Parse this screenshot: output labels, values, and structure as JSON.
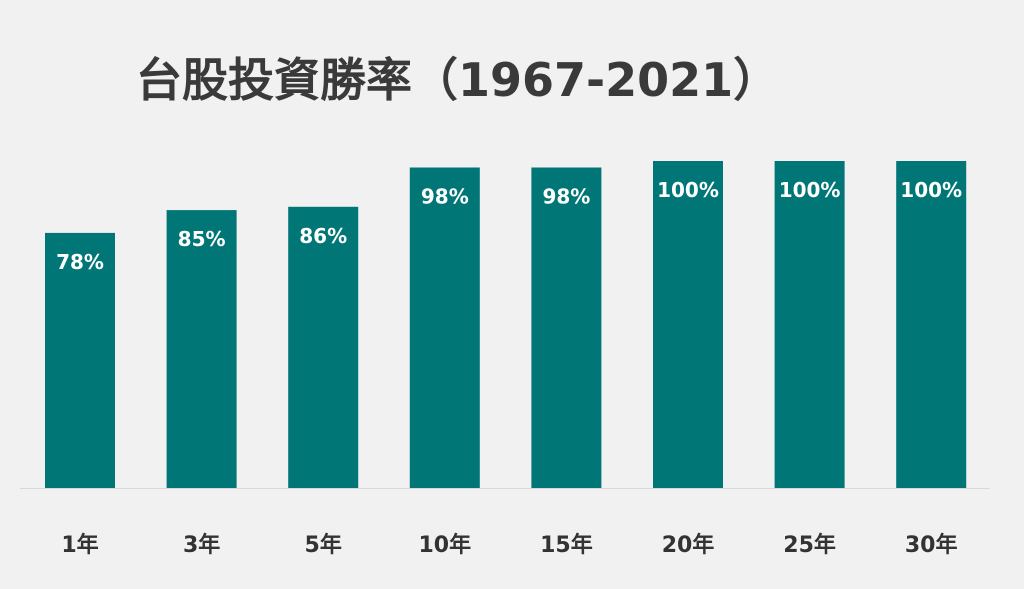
{
  "colors": {
    "background": "#f1f1f1",
    "bar": "#017677",
    "bar_label": "#ffffff",
    "title": "#3a3a3a",
    "axis_text": "#333333",
    "axis_line": "#d9d9d9"
  },
  "chart_data": {
    "type": "bar",
    "title": "台股投資勝率（1967-2021）",
    "xlabel": "",
    "ylabel": "",
    "categories": [
      "1年",
      "3年",
      "5年",
      "10年",
      "15年",
      "20年",
      "25年",
      "30年"
    ],
    "values": [
      78,
      85,
      86,
      98,
      98,
      100,
      100,
      100
    ],
    "data_labels": [
      "78%",
      "85%",
      "86%",
      "98%",
      "98%",
      "100%",
      "100%",
      "100%"
    ],
    "ylim": [
      0,
      100
    ],
    "grid": false,
    "legend": "none"
  }
}
